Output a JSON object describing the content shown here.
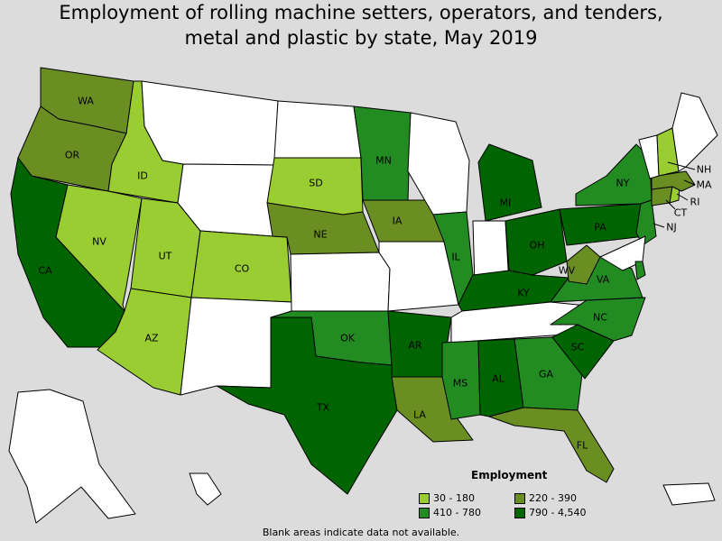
{
  "title_line1": "Employment of rolling machine setters, operators, and tenders,",
  "title_line2": "metal and plastic by state, May 2019",
  "legend": {
    "title": "Employment",
    "items": [
      {
        "label": "30 - 180",
        "color": "#9acd32"
      },
      {
        "label": "220 - 390",
        "color": "#6b8e23"
      },
      {
        "label": "410 - 780",
        "color": "#228b22"
      },
      {
        "label": "790 - 4,540",
        "color": "#006400"
      }
    ]
  },
  "note": "Blank areas indicate data not available.",
  "colors": {
    "nodata": "#ffffff",
    "background": "#dcdcdc"
  },
  "states": {
    "WA": {
      "label": "WA",
      "class": 1
    },
    "OR": {
      "label": "OR",
      "class": 1
    },
    "CA": {
      "label": "CA",
      "class": 3
    },
    "ID": {
      "label": "ID",
      "class": 0
    },
    "NV": {
      "label": "NV",
      "class": 0
    },
    "UT": {
      "label": "UT",
      "class": 0
    },
    "AZ": {
      "label": "AZ",
      "class": 0
    },
    "CO": {
      "label": "CO",
      "class": 0
    },
    "SD": {
      "label": "SD",
      "class": 0
    },
    "NE": {
      "label": "NE",
      "class": 1
    },
    "IA": {
      "label": "IA",
      "class": 1
    },
    "MN": {
      "label": "MN",
      "class": 2
    },
    "OK": {
      "label": "OK",
      "class": 2
    },
    "TX": {
      "label": "TX",
      "class": 3
    },
    "AR": {
      "label": "AR",
      "class": 3
    },
    "LA": {
      "label": "LA",
      "class": 1
    },
    "MS": {
      "label": "MS",
      "class": 2
    },
    "AL": {
      "label": "AL",
      "class": 3
    },
    "GA": {
      "label": "GA",
      "class": 2
    },
    "FL": {
      "label": "FL",
      "class": 1
    },
    "SC": {
      "label": "SC",
      "class": 3
    },
    "NC": {
      "label": "NC",
      "class": 2
    },
    "VA": {
      "label": "VA",
      "class": 2
    },
    "WV": {
      "label": "WV",
      "class": 1
    },
    "KY": {
      "label": "KY",
      "class": 3
    },
    "OH": {
      "label": "OH",
      "class": 3
    },
    "IL": {
      "label": "IL",
      "class": 2
    },
    "MI": {
      "label": "MI",
      "class": 3
    },
    "PA": {
      "label": "PA",
      "class": 3
    },
    "NY": {
      "label": "NY",
      "class": 2
    },
    "NJ": {
      "label": "NJ",
      "class": 2
    },
    "CT": {
      "label": "CT",
      "class": 1
    },
    "RI": {
      "label": "RI",
      "class": 0
    },
    "MA": {
      "label": "MA",
      "class": 1
    },
    "NH": {
      "label": "NH",
      "class": 0
    },
    "MT": {
      "label": "",
      "class": -1
    },
    "WY": {
      "label": "",
      "class": -1
    },
    "ND": {
      "label": "",
      "class": -1
    },
    "NM": {
      "label": "",
      "class": -1
    },
    "KS": {
      "label": "",
      "class": -1
    },
    "MO": {
      "label": "",
      "class": -1
    },
    "WI": {
      "label": "",
      "class": -1
    },
    "IN": {
      "label": "",
      "class": -1
    },
    "TN": {
      "label": "",
      "class": -1
    },
    "VT": {
      "label": "",
      "class": -1
    },
    "ME": {
      "label": "",
      "class": -1
    },
    "MD": {
      "label": "",
      "class": -1
    },
    "DE": {
      "label": "",
      "class": 2
    },
    "AK": {
      "label": "",
      "class": -1
    },
    "HI": {
      "label": "",
      "class": -1
    },
    "PR": {
      "label": "",
      "class": -1
    }
  }
}
